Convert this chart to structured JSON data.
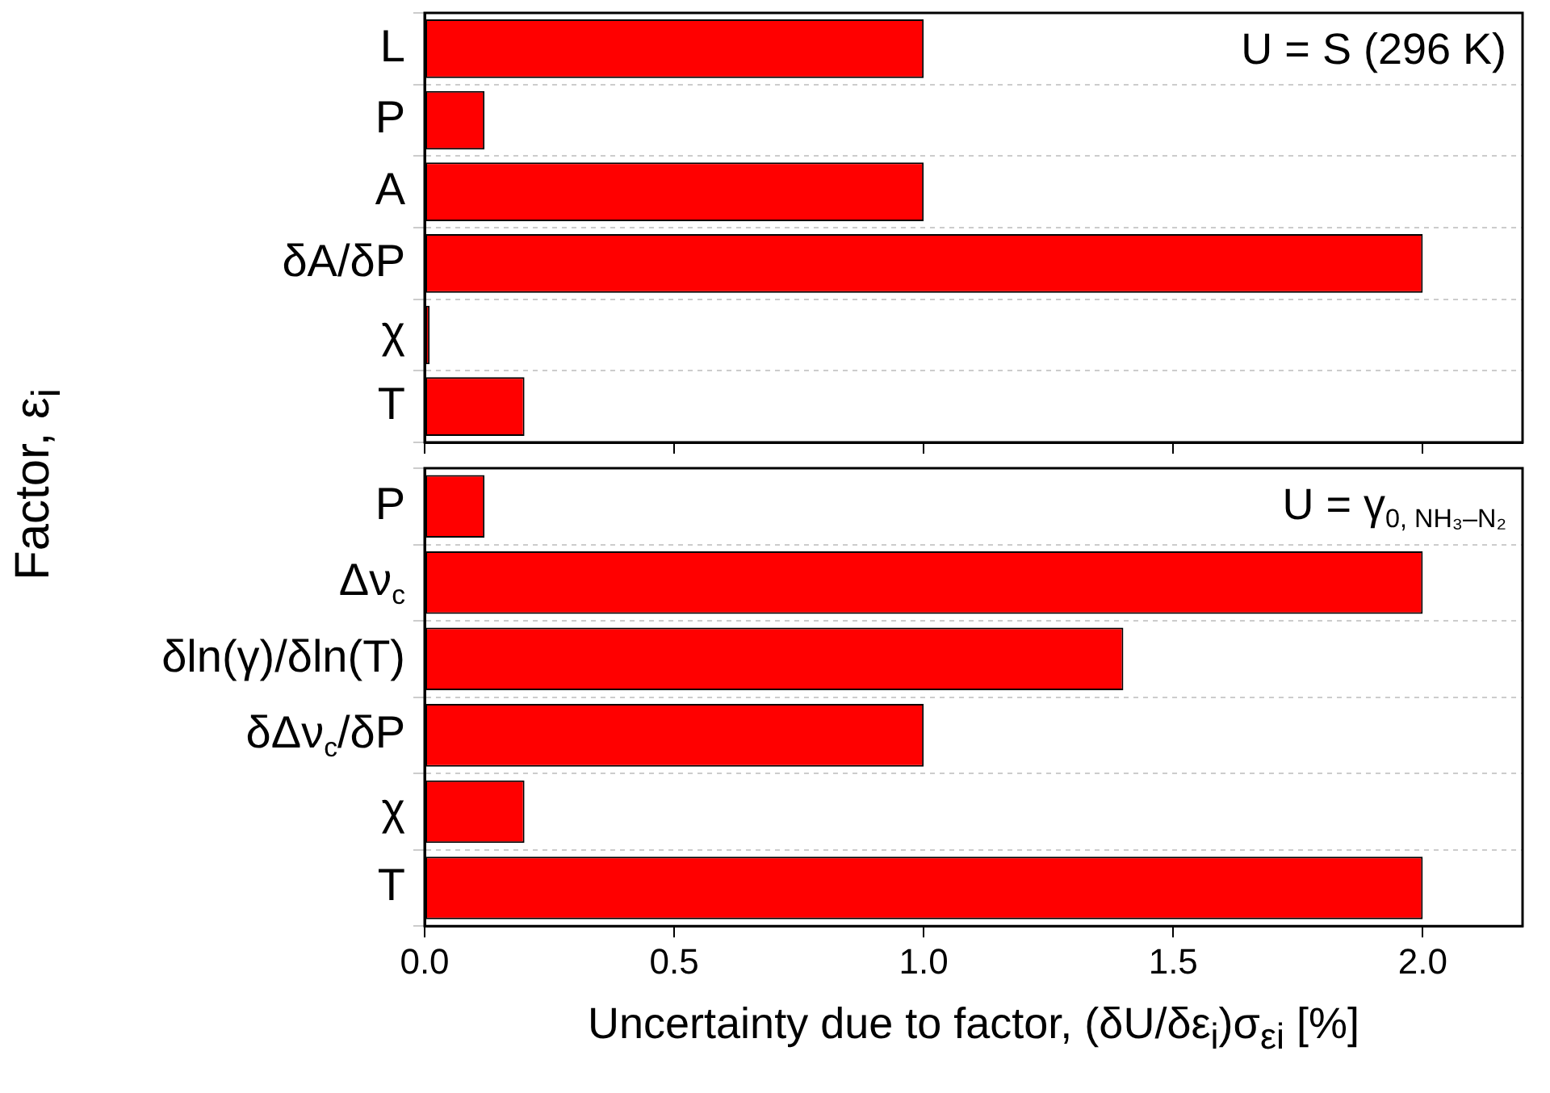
{
  "chart_data": [
    {
      "type": "bar",
      "orientation": "horizontal",
      "ylabel": "Factor, ε$_{i}$",
      "categories": [
        "L",
        "P",
        "A",
        "δA/δP",
        "χ",
        "T"
      ],
      "values": [
        1.0,
        0.12,
        1.0,
        2.0,
        0.01,
        0.2
      ],
      "color": "#ff0000",
      "xlim": [
        0,
        2.2
      ],
      "xticks": [
        {
          "value": 0,
          "label": null
        },
        {
          "value": 0.5,
          "label": null
        },
        {
          "value": 1,
          "label": null
        },
        {
          "value": 1.5,
          "label": null
        },
        {
          "value": 2,
          "label": null
        }
      ],
      "grid": "y",
      "tick_labels": "y",
      "annotations": [
        "U = S (296 K)"
      ]
    },
    {
      "type": "bar",
      "orientation": "horizontal",
      "xlabel": "Uncertainty due to factor, (δU/δε$_{i}$)σ$_{εi}$ [%]",
      "categories": [
        "P",
        "Δν$_{c}$",
        "δln(γ)/δln(T)",
        "δΔν$_{c}$/δP",
        "χ",
        "T"
      ],
      "values": [
        0.12,
        2.0,
        1.4,
        1.0,
        0.2,
        2.0
      ],
      "color": "#ff0000",
      "xlim": [
        0,
        2.2
      ],
      "xticks": [
        {
          "value": 0,
          "label": "0.0"
        },
        {
          "value": 0.5,
          "label": "0.5"
        },
        {
          "value": 1,
          "label": "1.0"
        },
        {
          "value": 1.5,
          "label": "1.5"
        },
        {
          "value": 2,
          "label": "2.0"
        }
      ],
      "grid": "y",
      "annotations": [
        "U = γ$_{0, NH₃–N₂}$"
      ]
    }
  ]
}
